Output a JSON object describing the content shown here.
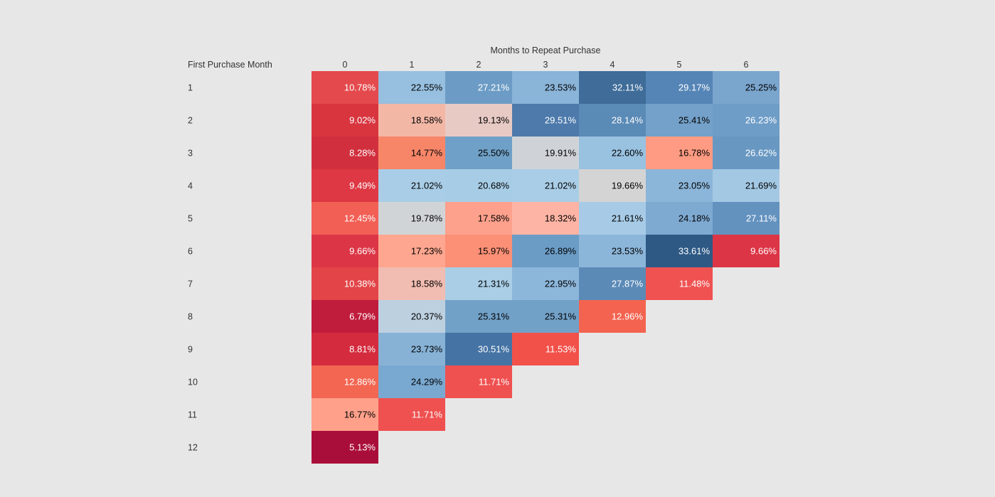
{
  "chart_data": {
    "type": "heatmap",
    "column_title": "Months to Repeat Purchase",
    "row_title": "First Purchase Month",
    "columns": [
      "0",
      "1",
      "2",
      "3",
      "4",
      "5",
      "6"
    ],
    "rows": [
      "1",
      "2",
      "3",
      "4",
      "5",
      "6",
      "7",
      "8",
      "9",
      "10",
      "11",
      "12"
    ],
    "values": [
      [
        10.78,
        22.55,
        27.21,
        23.53,
        32.11,
        29.17,
        25.25
      ],
      [
        9.02,
        18.58,
        19.13,
        29.51,
        28.14,
        25.41,
        26.23
      ],
      [
        8.28,
        14.77,
        25.5,
        19.91,
        22.6,
        16.78,
        26.62
      ],
      [
        9.49,
        21.02,
        20.68,
        21.02,
        19.66,
        23.05,
        21.69
      ],
      [
        12.45,
        19.78,
        17.58,
        18.32,
        21.61,
        24.18,
        27.11
      ],
      [
        9.66,
        17.23,
        15.97,
        26.89,
        23.53,
        33.61,
        9.66
      ],
      [
        10.38,
        18.58,
        21.31,
        22.95,
        27.87,
        11.48
      ],
      [
        6.79,
        20.37,
        25.31,
        25.31,
        12.96
      ],
      [
        8.81,
        23.73,
        30.51,
        11.53
      ],
      [
        12.86,
        24.29,
        11.71
      ],
      [
        16.77,
        11.71
      ],
      [
        5.13
      ]
    ],
    "labels": [
      [
        "10.78%",
        "22.55%",
        "27.21%",
        "23.53%",
        "32.11%",
        "29.17%",
        "25.25%"
      ],
      [
        "9.02%",
        "18.58%",
        "19.13%",
        "29.51%",
        "28.14%",
        "25.41%",
        "26.23%"
      ],
      [
        "8.28%",
        "14.77%",
        "25.50%",
        "19.91%",
        "22.60%",
        "16.78%",
        "26.62%"
      ],
      [
        "9.49%",
        "21.02%",
        "20.68%",
        "21.02%",
        "19.66%",
        "23.05%",
        "21.69%"
      ],
      [
        "12.45%",
        "19.78%",
        "17.58%",
        "18.32%",
        "21.61%",
        "24.18%",
        "27.11%"
      ],
      [
        "9.66%",
        "17.23%",
        "15.97%",
        "26.89%",
        "23.53%",
        "33.61%",
        "9.66%"
      ],
      [
        "10.38%",
        "18.58%",
        "21.31%",
        "22.95%",
        "27.87%",
        "11.48%"
      ],
      [
        "6.79%",
        "20.37%",
        "25.31%",
        "25.31%",
        "12.96%"
      ],
      [
        "8.81%",
        "23.73%",
        "30.51%",
        "11.53%"
      ],
      [
        "12.86%",
        "24.29%",
        "11.71%"
      ],
      [
        "16.77%",
        "11.71%"
      ],
      [
        "5.13%"
      ]
    ],
    "colors": [
      [
        "#e44a4d",
        "#97bfdf",
        "#6c9cc5",
        "#8ab4d8",
        "#3f6c99",
        "#5585b6",
        "#7aa5cd"
      ],
      [
        "#d8353f",
        "#f3b7a6",
        "#e8cac5",
        "#4d7aab",
        "#5a8ab6",
        "#74a1c9",
        "#6e9dc7"
      ],
      [
        "#d12f3d",
        "#f78669",
        "#6fa0c7",
        "#cfd3d8",
        "#99c1e0",
        "#fe9b82",
        "#6898c2"
      ],
      [
        "#dd3844",
        "#a9cde6",
        "#a7cde6",
        "#a9cde6",
        "#d4d4d4",
        "#8bb5d9",
        "#a3c8e4"
      ],
      [
        "#f25f55",
        "#d1d4d7",
        "#fda08c",
        "#feb4a4",
        "#a7cbe6",
        "#7eaad2",
        "#6392bf"
      ],
      [
        "#dc3646",
        "#fea68f",
        "#fb9076",
        "#6b9cc6",
        "#8bb5d9",
        "#2e5985",
        "#dc3646"
      ],
      [
        "#e24447",
        "#f1bcb1",
        "#a9cee6",
        "#8cb6da",
        "#5b8ab7",
        "#ef5251"
      ],
      [
        "#c01c3b",
        "#bdd0e0",
        "#72a1c8",
        "#72a1c8",
        "#f3634f"
      ],
      [
        "#d42b3e",
        "#87b2d6",
        "#4573a4",
        "#f2514a"
      ],
      [
        "#f26652",
        "#79a8d0",
        "#ef5150"
      ],
      [
        "#ffa08a",
        "#ef5150"
      ],
      [
        "#a90e3a"
      ]
    ],
    "label_colors": [
      [
        "#ffffff",
        "#000000",
        "#ffffff",
        "#000000",
        "#ffffff",
        "#ffffff",
        "#000000"
      ],
      [
        "#ffffff",
        "#000000",
        "#000000",
        "#ffffff",
        "#ffffff",
        "#000000",
        "#ffffff"
      ],
      [
        "#ffffff",
        "#000000",
        "#000000",
        "#000000",
        "#000000",
        "#000000",
        "#ffffff"
      ],
      [
        "#ffffff",
        "#000000",
        "#000000",
        "#000000",
        "#000000",
        "#000000",
        "#000000"
      ],
      [
        "#ffffff",
        "#000000",
        "#000000",
        "#000000",
        "#000000",
        "#000000",
        "#ffffff"
      ],
      [
        "#ffffff",
        "#000000",
        "#000000",
        "#000000",
        "#000000",
        "#ffffff",
        "#ffffff"
      ],
      [
        "#ffffff",
        "#000000",
        "#000000",
        "#000000",
        "#ffffff",
        "#ffffff"
      ],
      [
        "#ffffff",
        "#000000",
        "#000000",
        "#000000",
        "#ffffff"
      ],
      [
        "#ffffff",
        "#000000",
        "#ffffff",
        "#ffffff"
      ],
      [
        "#ffffff",
        "#000000",
        "#ffffff"
      ],
      [
        "#000000",
        "#ffffff"
      ],
      [
        "#ffffff"
      ]
    ],
    "background": "#e7e7e7",
    "legend": "none",
    "grid": false
  }
}
